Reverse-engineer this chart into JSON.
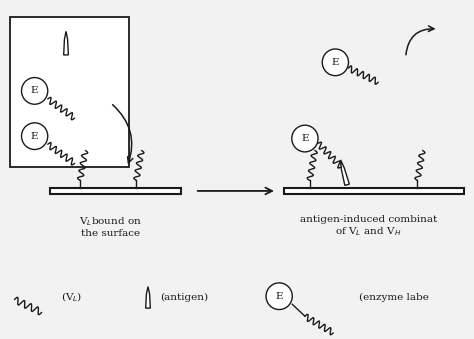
{
  "bg_color": "#f2f2f2",
  "line_color": "#1a1a1a",
  "label_VL": "V$_L$bound on\nthe surface",
  "label_right": "antigen-induced combinat\nof V$_L$ and V$_H$",
  "legend_VL": "(V$_L$)",
  "legend_antigen": "(antigen)",
  "legend_enzyme": "(enzyme labe"
}
